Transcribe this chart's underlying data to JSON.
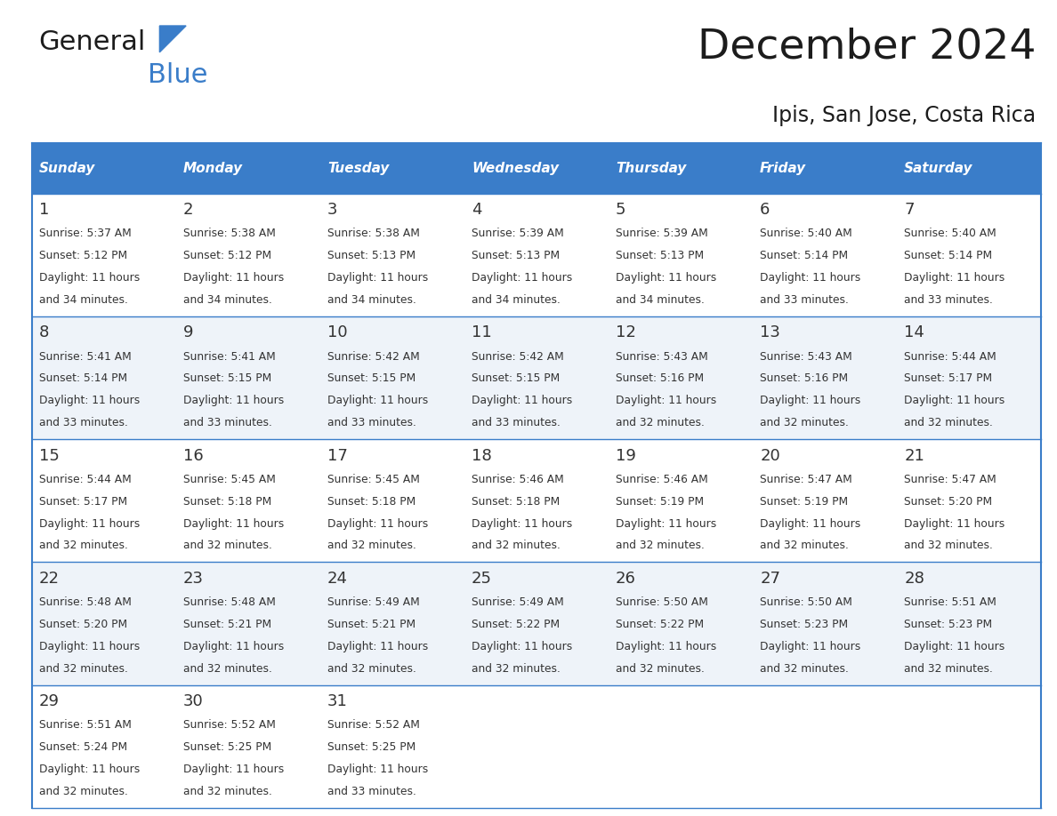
{
  "title": "December 2024",
  "subtitle": "Ipis, San Jose, Costa Rica",
  "header_color": "#3A7DC9",
  "header_text_color": "#FFFFFF",
  "border_color": "#3A7DC9",
  "text_color": "#333333",
  "days_of_week": [
    "Sunday",
    "Monday",
    "Tuesday",
    "Wednesday",
    "Thursday",
    "Friday",
    "Saturday"
  ],
  "calendar_data": [
    [
      {
        "day": "1",
        "sunrise": "5:37 AM",
        "sunset": "5:12 PM",
        "daylight": "11 hours",
        "daylight2": "and 34 minutes."
      },
      {
        "day": "2",
        "sunrise": "5:38 AM",
        "sunset": "5:12 PM",
        "daylight": "11 hours",
        "daylight2": "and 34 minutes."
      },
      {
        "day": "3",
        "sunrise": "5:38 AM",
        "sunset": "5:13 PM",
        "daylight": "11 hours",
        "daylight2": "and 34 minutes."
      },
      {
        "day": "4",
        "sunrise": "5:39 AM",
        "sunset": "5:13 PM",
        "daylight": "11 hours",
        "daylight2": "and 34 minutes."
      },
      {
        "day": "5",
        "sunrise": "5:39 AM",
        "sunset": "5:13 PM",
        "daylight": "11 hours",
        "daylight2": "and 34 minutes."
      },
      {
        "day": "6",
        "sunrise": "5:40 AM",
        "sunset": "5:14 PM",
        "daylight": "11 hours",
        "daylight2": "and 33 minutes."
      },
      {
        "day": "7",
        "sunrise": "5:40 AM",
        "sunset": "5:14 PM",
        "daylight": "11 hours",
        "daylight2": "and 33 minutes."
      }
    ],
    [
      {
        "day": "8",
        "sunrise": "5:41 AM",
        "sunset": "5:14 PM",
        "daylight": "11 hours",
        "daylight2": "and 33 minutes."
      },
      {
        "day": "9",
        "sunrise": "5:41 AM",
        "sunset": "5:15 PM",
        "daylight": "11 hours",
        "daylight2": "and 33 minutes."
      },
      {
        "day": "10",
        "sunrise": "5:42 AM",
        "sunset": "5:15 PM",
        "daylight": "11 hours",
        "daylight2": "and 33 minutes."
      },
      {
        "day": "11",
        "sunrise": "5:42 AM",
        "sunset": "5:15 PM",
        "daylight": "11 hours",
        "daylight2": "and 33 minutes."
      },
      {
        "day": "12",
        "sunrise": "5:43 AM",
        "sunset": "5:16 PM",
        "daylight": "11 hours",
        "daylight2": "and 32 minutes."
      },
      {
        "day": "13",
        "sunrise": "5:43 AM",
        "sunset": "5:16 PM",
        "daylight": "11 hours",
        "daylight2": "and 32 minutes."
      },
      {
        "day": "14",
        "sunrise": "5:44 AM",
        "sunset": "5:17 PM",
        "daylight": "11 hours",
        "daylight2": "and 32 minutes."
      }
    ],
    [
      {
        "day": "15",
        "sunrise": "5:44 AM",
        "sunset": "5:17 PM",
        "daylight": "11 hours",
        "daylight2": "and 32 minutes."
      },
      {
        "day": "16",
        "sunrise": "5:45 AM",
        "sunset": "5:18 PM",
        "daylight": "11 hours",
        "daylight2": "and 32 minutes."
      },
      {
        "day": "17",
        "sunrise": "5:45 AM",
        "sunset": "5:18 PM",
        "daylight": "11 hours",
        "daylight2": "and 32 minutes."
      },
      {
        "day": "18",
        "sunrise": "5:46 AM",
        "sunset": "5:18 PM",
        "daylight": "11 hours",
        "daylight2": "and 32 minutes."
      },
      {
        "day": "19",
        "sunrise": "5:46 AM",
        "sunset": "5:19 PM",
        "daylight": "11 hours",
        "daylight2": "and 32 minutes."
      },
      {
        "day": "20",
        "sunrise": "5:47 AM",
        "sunset": "5:19 PM",
        "daylight": "11 hours",
        "daylight2": "and 32 minutes."
      },
      {
        "day": "21",
        "sunrise": "5:47 AM",
        "sunset": "5:20 PM",
        "daylight": "11 hours",
        "daylight2": "and 32 minutes."
      }
    ],
    [
      {
        "day": "22",
        "sunrise": "5:48 AM",
        "sunset": "5:20 PM",
        "daylight": "11 hours",
        "daylight2": "and 32 minutes."
      },
      {
        "day": "23",
        "sunrise": "5:48 AM",
        "sunset": "5:21 PM",
        "daylight": "11 hours",
        "daylight2": "and 32 minutes."
      },
      {
        "day": "24",
        "sunrise": "5:49 AM",
        "sunset": "5:21 PM",
        "daylight": "11 hours",
        "daylight2": "and 32 minutes."
      },
      {
        "day": "25",
        "sunrise": "5:49 AM",
        "sunset": "5:22 PM",
        "daylight": "11 hours",
        "daylight2": "and 32 minutes."
      },
      {
        "day": "26",
        "sunrise": "5:50 AM",
        "sunset": "5:22 PM",
        "daylight": "11 hours",
        "daylight2": "and 32 minutes."
      },
      {
        "day": "27",
        "sunrise": "5:50 AM",
        "sunset": "5:23 PM",
        "daylight": "11 hours",
        "daylight2": "and 32 minutes."
      },
      {
        "day": "28",
        "sunrise": "5:51 AM",
        "sunset": "5:23 PM",
        "daylight": "11 hours",
        "daylight2": "and 32 minutes."
      }
    ],
    [
      {
        "day": "29",
        "sunrise": "5:51 AM",
        "sunset": "5:24 PM",
        "daylight": "11 hours",
        "daylight2": "and 32 minutes."
      },
      {
        "day": "30",
        "sunrise": "5:52 AM",
        "sunset": "5:25 PM",
        "daylight": "11 hours",
        "daylight2": "and 32 minutes."
      },
      {
        "day": "31",
        "sunrise": "5:52 AM",
        "sunset": "5:25 PM",
        "daylight": "11 hours",
        "daylight2": "and 33 minutes."
      },
      null,
      null,
      null,
      null
    ]
  ]
}
